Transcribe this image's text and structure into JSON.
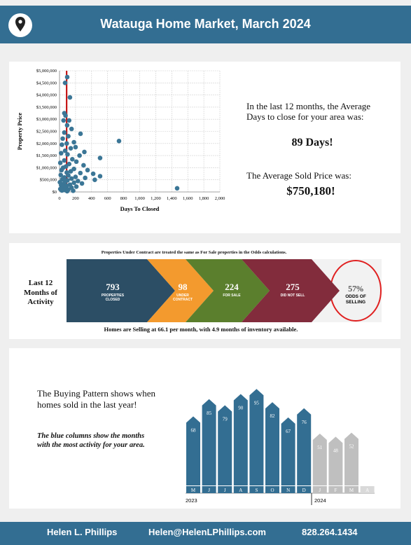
{
  "header": {
    "title": "Watauga Home Market, March 2024"
  },
  "chart_data": [
    {
      "type": "scatter",
      "x_label": "Days To Closed",
      "y_label": "Property Price",
      "color": "#3b7696",
      "x": [
        96,
        70,
        130,
        60,
        75,
        50,
        120,
        95,
        150,
        60,
        262,
        110,
        40,
        742,
        180,
        90,
        30,
        200,
        140,
        310,
        70,
        20,
        100,
        250,
        506,
        160,
        60,
        210,
        10,
        120,
        300,
        80,
        45,
        180,
        350,
        25,
        140,
        90,
        260,
        420,
        15,
        110,
        506,
        200,
        60,
        320,
        150,
        35,
        440,
        100,
        230,
        70,
        5,
        180,
        280,
        50,
        130,
        20,
        90,
        210,
        40,
        150,
        1467,
        75,
        10,
        110,
        60,
        30,
        170,
        95
      ],
      "y": [
        4740000,
        4500000,
        3900000,
        3250000,
        3150000,
        2950000,
        2950000,
        2750000,
        2600000,
        2450000,
        2400000,
        2300000,
        2200000,
        2100000,
        2050000,
        2000000,
        1950000,
        1850000,
        1800000,
        1650000,
        1700000,
        1600000,
        1550000,
        1500000,
        1400000,
        1350000,
        1300000,
        1250000,
        1200000,
        1150000,
        1100000,
        1050000,
        1000000,
        950000,
        900000,
        900000,
        850000,
        800000,
        780000,
        750000,
        700000,
        680000,
        650000,
        620000,
        600000,
        580000,
        550000,
        520000,
        500000,
        480000,
        450000,
        420000,
        400000,
        380000,
        350000,
        330000,
        300000,
        280000,
        250000,
        220000,
        200000,
        180000,
        150000,
        150000,
        120000,
        100000,
        80000,
        60000,
        50000,
        30000
      ],
      "xlim": [
        0,
        2000
      ],
      "ylim": [
        0,
        5000000
      ],
      "xticks": [
        0,
        200,
        400,
        600,
        800,
        {
          "value": 1000,
          "label": "1,000"
        },
        {
          "value": 1200,
          "label": "1,200"
        },
        {
          "value": 1400,
          "label": "1,400"
        },
        {
          "value": 1600,
          "label": "1,600"
        },
        {
          "value": 1800,
          "label": "1,800"
        },
        {
          "value": 2000,
          "label": "2,000"
        }
      ],
      "yticks": [
        {
          "value": 0,
          "label": "$0"
        },
        {
          "value": 500000,
          "label": "$500,000"
        },
        {
          "value": 1000000,
          "label": "$1,000,000"
        },
        {
          "value": 1500000,
          "label": "$1,500,000"
        },
        {
          "value": 2000000,
          "label": "$2,000,000"
        },
        {
          "value": 2500000,
          "label": "$2,500,000"
        },
        {
          "value": 3000000,
          "label": "$3,000,000"
        },
        {
          "value": 3500000,
          "label": "$3,500,000"
        },
        {
          "value": 4000000,
          "label": "$4,000,000"
        },
        {
          "value": 4500000,
          "label": "$4,500,000"
        },
        {
          "value": 5000000,
          "label": "$5,000,000"
        }
      ],
      "grid": true,
      "reference_line": {
        "x": 89,
        "color": "#c00000"
      }
    },
    {
      "type": "bar",
      "categories": [
        "M",
        "J",
        "J",
        "A",
        "S",
        "O",
        "N",
        "D",
        "J",
        "F",
        "M",
        "A"
      ],
      "values": [
        68,
        85,
        79,
        90,
        95,
        82,
        67,
        76,
        51,
        48,
        52,
        null
      ],
      "colors": [
        "#336e92",
        "#336e92",
        "#336e92",
        "#336e92",
        "#336e92",
        "#336e92",
        "#336e92",
        "#336e92",
        "#bfbfbf",
        "#bfbfbf",
        "#bfbfbf",
        "#d9d9d9"
      ],
      "ylim": [
        0,
        100
      ],
      "years": [
        "2023",
        "2024"
      ]
    }
  ],
  "summary": {
    "days_intro": "In the last 12 months, the Average Days to close for your area was:",
    "days": "89 Days!",
    "price_intro": "The Average Sold Price was:",
    "price": "$750,180!"
  },
  "activity": {
    "title": "Last 12 Months of Activity",
    "note": "Properties Under Contract are treated the same as For Sale properties in the Odds calculations.",
    "stages": [
      {
        "value": "793",
        "label": "PROPERTIES CLOSED",
        "color": "#2c4e65"
      },
      {
        "value": "98",
        "label": "UNDER CONTRACT",
        "color": "#f39a2e"
      },
      {
        "value": "224",
        "label": "FOR SALE",
        "color": "#5b7f2d"
      },
      {
        "value": "275",
        "label": "DID NOT SELL",
        "color": "#822c3c"
      }
    ],
    "odds": {
      "value": "57%",
      "label": "ODDS OF SELLING"
    },
    "summary": "Homes are Selling at 66.1 per month, with 4.9 months of inventory available."
  },
  "buying_pattern": {
    "text": "The Buying Pattern shows when homes sold in the last year!",
    "note": "The blue columns show the months with the most activity for your area."
  },
  "footer": {
    "name": "Helen L. Phillips",
    "email": "Helen@HelenLPhillips.com",
    "phone": "828.264.1434"
  }
}
